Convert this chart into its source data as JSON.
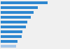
{
  "values": [
    47.3,
    37.3,
    33.4,
    30.0,
    26.7,
    25.7,
    22.1,
    21.0,
    16.7,
    15.3
  ],
  "bar_color": "#2d87d0",
  "last_bar_color": "#a8c8e8",
  "background_color": "#f0f0f0",
  "plot_bg_color": "#ffffff",
  "xlim": [
    0,
    50
  ],
  "bar_height": 0.55
}
